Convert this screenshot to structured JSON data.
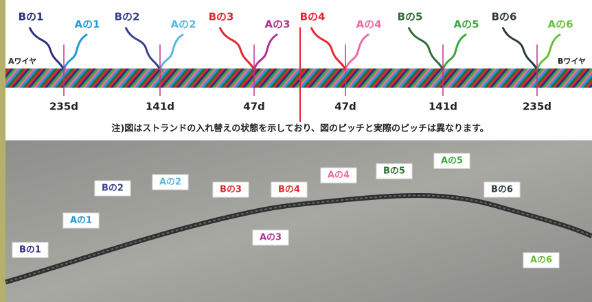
{
  "top_diagram": {
    "strands": [
      {
        "label": "Bの1",
        "color": "#2b2f80"
      },
      {
        "label": "Aの1",
        "color": "#1f9ad6"
      },
      {
        "label": "Bの2",
        "color": "#3a3f8c"
      },
      {
        "label": "Aの2",
        "color": "#5ab6e2"
      },
      {
        "label": "Bの3",
        "color": "#e1262f"
      },
      {
        "label": "Aの3",
        "color": "#b0308f"
      },
      {
        "label": "Bの4",
        "color": "#e8262c"
      },
      {
        "label": "Aの4",
        "color": "#ec6ba0"
      },
      {
        "label": "Bの5",
        "color": "#2e6b35"
      },
      {
        "label": "Aの5",
        "color": "#3aa83c"
      },
      {
        "label": "Bの6",
        "color": "#2b3a3a"
      },
      {
        "label": "Aの6",
        "color": "#6abf3a"
      }
    ],
    "wire_a": "Aワイヤ",
    "wire_b": "Bワイヤ",
    "distances": [
      "235d",
      "141d",
      "47d",
      "47d",
      "141d",
      "235d"
    ]
  },
  "note": "注)図はストランドの入れ替えの状態を示しており、図のピッチと実際のピッチは異なります。",
  "photo": {
    "labels": [
      {
        "label": "Bの1",
        "color": "#2b2f80"
      },
      {
        "label": "Aの1",
        "color": "#1f9ad6"
      },
      {
        "label": "Bの2",
        "color": "#3a3f8c"
      },
      {
        "label": "Aの2",
        "color": "#5ab6e2"
      },
      {
        "label": "Bの3",
        "color": "#e1262f"
      },
      {
        "label": "Aの3",
        "color": "#b0308f"
      },
      {
        "label": "Bの4",
        "color": "#e8262c"
      },
      {
        "label": "Aの4",
        "color": "#ec6ba0"
      },
      {
        "label": "Bの5",
        "color": "#2e6b35"
      },
      {
        "label": "Aの5",
        "color": "#3aa83c"
      },
      {
        "label": "Bの6",
        "color": "#2b3a3a"
      },
      {
        "label": "Aの6",
        "color": "#6abf3a"
      }
    ]
  }
}
